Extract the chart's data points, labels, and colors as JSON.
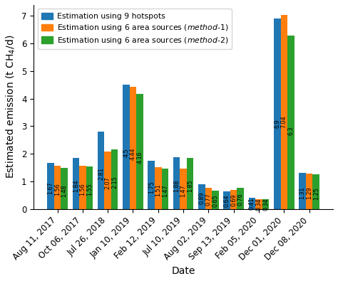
{
  "categories": [
    "Aug 11, 2017",
    "Oct 06, 2017",
    "Jul 26, 2018",
    "Jan 10, 2019",
    "Feb 12, 2019",
    "Jul 10, 2019",
    "Aug 02, 2019",
    "Sep 13, 2019",
    "Feb 05, 2020",
    "Dec 01, 2020",
    "Dec 08, 2020"
  ],
  "blue_values": [
    1.67,
    1.84,
    2.81,
    4.5,
    1.75,
    1.88,
    0.89,
    0.64,
    0.41,
    6.9,
    1.31
  ],
  "orange_values": [
    1.56,
    1.56,
    2.07,
    4.44,
    1.51,
    1.47,
    0.77,
    0.69,
    0.34,
    7.04,
    1.29
  ],
  "green_values": [
    1.48,
    1.55,
    2.15,
    4.16,
    1.47,
    1.85,
    0.65,
    0.76,
    0.34,
    6.3,
    1.25
  ],
  "blue_color": "#1f77b4",
  "orange_color": "#ff7f0e",
  "green_color": "#2ca02c",
  "xlabel": "Date",
  "ylabel": "Estimated emission (t CH$_4$/d)",
  "ylim": [
    0,
    7.4
  ],
  "bar_width": 0.27,
  "label_fontsize": 5.8,
  "axis_label_fontsize": 10,
  "tick_fontsize": 8.5,
  "legend_fontsize": 7.8
}
